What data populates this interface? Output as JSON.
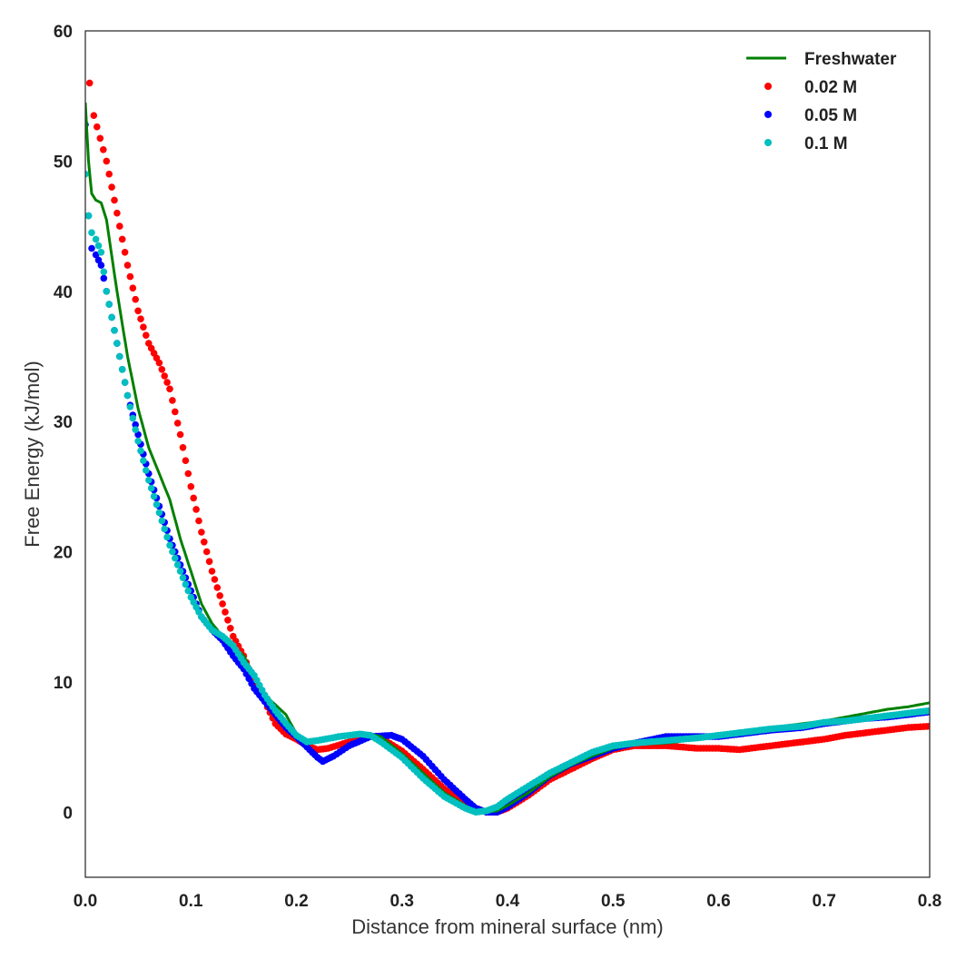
{
  "chart_data": {
    "type": "line",
    "title": "",
    "xlabel": "Distance from mineral surface (nm)",
    "ylabel": "Free Energy (kJ/mol)",
    "xlim": [
      0.0,
      0.8
    ],
    "ylim": [
      -5,
      60
    ],
    "xticks": [
      0.0,
      0.1,
      0.2,
      0.3,
      0.4,
      0.5,
      0.6,
      0.7,
      0.8
    ],
    "xtick_labels": [
      "0.0",
      "0.1",
      "0.2",
      "0.3",
      "0.4",
      "0.5",
      "0.6",
      "0.7",
      "0.8"
    ],
    "yticks": [
      0,
      10,
      20,
      30,
      40,
      50,
      60
    ],
    "ytick_labels": [
      "0",
      "10",
      "20",
      "30",
      "40",
      "50",
      "60"
    ],
    "grid": false,
    "legend_position": "top-right",
    "series": [
      {
        "name": "Freshwater",
        "style": "line",
        "color": "#008000",
        "points": [
          [
            0.0,
            54.5
          ],
          [
            0.003,
            50.0
          ],
          [
            0.006,
            47.5
          ],
          [
            0.01,
            47.0
          ],
          [
            0.015,
            46.8
          ],
          [
            0.02,
            45.5
          ],
          [
            0.03,
            40.0
          ],
          [
            0.04,
            35.0
          ],
          [
            0.05,
            31.0
          ],
          [
            0.06,
            28.0
          ],
          [
            0.07,
            26.0
          ],
          [
            0.08,
            24.0
          ],
          [
            0.09,
            21.0
          ],
          [
            0.1,
            18.5
          ],
          [
            0.11,
            16.0
          ],
          [
            0.12,
            14.5
          ],
          [
            0.13,
            13.5
          ],
          [
            0.15,
            12.0
          ],
          [
            0.17,
            9.0
          ],
          [
            0.19,
            7.5
          ],
          [
            0.2,
            6.0
          ],
          [
            0.21,
            5.3
          ],
          [
            0.22,
            5.5
          ],
          [
            0.25,
            5.9
          ],
          [
            0.27,
            6.0
          ],
          [
            0.28,
            5.8
          ],
          [
            0.3,
            4.5
          ],
          [
            0.32,
            3.0
          ],
          [
            0.34,
            1.5
          ],
          [
            0.36,
            0.5
          ],
          [
            0.37,
            0.1
          ],
          [
            0.38,
            0.0
          ],
          [
            0.39,
            0.1
          ],
          [
            0.4,
            0.5
          ],
          [
            0.42,
            1.5
          ],
          [
            0.44,
            2.7
          ],
          [
            0.46,
            3.6
          ],
          [
            0.48,
            4.3
          ],
          [
            0.5,
            4.9
          ],
          [
            0.52,
            5.2
          ],
          [
            0.55,
            5.3
          ],
          [
            0.58,
            5.6
          ],
          [
            0.6,
            6.0
          ],
          [
            0.62,
            6.2
          ],
          [
            0.65,
            6.5
          ],
          [
            0.68,
            6.8
          ],
          [
            0.7,
            7.0
          ],
          [
            0.72,
            7.3
          ],
          [
            0.74,
            7.6
          ],
          [
            0.76,
            7.9
          ],
          [
            0.78,
            8.1
          ],
          [
            0.8,
            8.4
          ]
        ]
      },
      {
        "name": "0.02 M",
        "style": "dots",
        "color": "#ff0000",
        "points": [
          [
            0.004,
            56.0
          ],
          [
            0.008,
            53.5
          ],
          [
            0.02,
            50.0
          ],
          [
            0.03,
            46.0
          ],
          [
            0.04,
            42.0
          ],
          [
            0.05,
            38.5
          ],
          [
            0.06,
            36.0
          ],
          [
            0.07,
            34.5
          ],
          [
            0.08,
            32.5
          ],
          [
            0.09,
            29.0
          ],
          [
            0.1,
            25.0
          ],
          [
            0.11,
            21.5
          ],
          [
            0.12,
            18.5
          ],
          [
            0.13,
            16.0
          ],
          [
            0.14,
            13.5
          ],
          [
            0.15,
            12.0
          ],
          [
            0.16,
            10.0
          ],
          [
            0.17,
            8.5
          ],
          [
            0.18,
            6.8
          ],
          [
            0.19,
            6.0
          ],
          [
            0.2,
            5.6
          ],
          [
            0.21,
            5.1
          ],
          [
            0.22,
            4.8
          ],
          [
            0.23,
            4.9
          ],
          [
            0.25,
            5.4
          ],
          [
            0.27,
            5.8
          ],
          [
            0.28,
            5.7
          ],
          [
            0.3,
            4.7
          ],
          [
            0.32,
            3.3
          ],
          [
            0.34,
            1.8
          ],
          [
            0.36,
            0.6
          ],
          [
            0.38,
            0.0
          ],
          [
            0.39,
            0.0
          ],
          [
            0.4,
            0.3
          ],
          [
            0.42,
            1.3
          ],
          [
            0.44,
            2.5
          ],
          [
            0.46,
            3.3
          ],
          [
            0.48,
            4.1
          ],
          [
            0.5,
            4.8
          ],
          [
            0.52,
            5.1
          ],
          [
            0.55,
            5.1
          ],
          [
            0.58,
            4.9
          ],
          [
            0.6,
            4.9
          ],
          [
            0.62,
            4.8
          ],
          [
            0.64,
            5.0
          ],
          [
            0.66,
            5.2
          ],
          [
            0.68,
            5.4
          ],
          [
            0.7,
            5.6
          ],
          [
            0.72,
            5.9
          ],
          [
            0.74,
            6.1
          ],
          [
            0.76,
            6.3
          ],
          [
            0.78,
            6.5
          ],
          [
            0.8,
            6.6
          ]
        ]
      },
      {
        "name": "0.05 M",
        "style": "dots",
        "color": "#0000ff",
        "points": [
          [
            0.0,
            52.8
          ],
          [
            0.003,
            45.8
          ],
          [
            0.006,
            43.3
          ],
          [
            0.01,
            42.8
          ],
          [
            0.015,
            42.0
          ],
          [
            0.02,
            40.0
          ],
          [
            0.03,
            36.0
          ],
          [
            0.04,
            32.0
          ],
          [
            0.05,
            29.0
          ],
          [
            0.06,
            26.0
          ],
          [
            0.07,
            23.5
          ],
          [
            0.08,
            21.0
          ],
          [
            0.09,
            19.0
          ],
          [
            0.1,
            17.0
          ],
          [
            0.11,
            15.0
          ],
          [
            0.12,
            14.0
          ],
          [
            0.13,
            13.2
          ],
          [
            0.14,
            12.0
          ],
          [
            0.15,
            11.0
          ],
          [
            0.16,
            9.5
          ],
          [
            0.17,
            8.5
          ],
          [
            0.18,
            7.5
          ],
          [
            0.19,
            6.5
          ],
          [
            0.2,
            5.8
          ],
          [
            0.21,
            5.0
          ],
          [
            0.22,
            4.2
          ],
          [
            0.225,
            3.9
          ],
          [
            0.235,
            4.3
          ],
          [
            0.25,
            5.1
          ],
          [
            0.27,
            5.8
          ],
          [
            0.29,
            5.9
          ],
          [
            0.3,
            5.6
          ],
          [
            0.32,
            4.3
          ],
          [
            0.34,
            2.5
          ],
          [
            0.36,
            1.0
          ],
          [
            0.37,
            0.3
          ],
          [
            0.38,
            0.0
          ],
          [
            0.39,
            0.0
          ],
          [
            0.4,
            0.4
          ],
          [
            0.42,
            1.5
          ],
          [
            0.44,
            2.8
          ],
          [
            0.46,
            3.7
          ],
          [
            0.48,
            4.3
          ],
          [
            0.5,
            4.9
          ],
          [
            0.52,
            5.3
          ],
          [
            0.55,
            5.8
          ],
          [
            0.58,
            5.8
          ],
          [
            0.6,
            5.8
          ],
          [
            0.62,
            6.0
          ],
          [
            0.65,
            6.3
          ],
          [
            0.68,
            6.5
          ],
          [
            0.7,
            6.8
          ],
          [
            0.72,
            7.0
          ],
          [
            0.74,
            7.2
          ],
          [
            0.76,
            7.3
          ],
          [
            0.78,
            7.5
          ],
          [
            0.8,
            7.7
          ]
        ]
      },
      {
        "name": "0.1 M",
        "style": "dots",
        "color": "#00bfbf",
        "points": [
          [
            0.0,
            49.0
          ],
          [
            0.003,
            45.8
          ],
          [
            0.006,
            44.5
          ],
          [
            0.01,
            44.0
          ],
          [
            0.015,
            43.0
          ],
          [
            0.02,
            40.0
          ],
          [
            0.03,
            36.0
          ],
          [
            0.04,
            32.0
          ],
          [
            0.05,
            28.5
          ],
          [
            0.06,
            25.5
          ],
          [
            0.07,
            23.0
          ],
          [
            0.08,
            20.5
          ],
          [
            0.09,
            18.5
          ],
          [
            0.1,
            16.5
          ],
          [
            0.11,
            15.0
          ],
          [
            0.12,
            14.0
          ],
          [
            0.13,
            13.5
          ],
          [
            0.14,
            12.8
          ],
          [
            0.15,
            11.5
          ],
          [
            0.16,
            10.5
          ],
          [
            0.17,
            9.0
          ],
          [
            0.18,
            7.8
          ],
          [
            0.19,
            6.8
          ],
          [
            0.2,
            5.9
          ],
          [
            0.21,
            5.4
          ],
          [
            0.22,
            5.5
          ],
          [
            0.24,
            5.8
          ],
          [
            0.26,
            6.0
          ],
          [
            0.27,
            5.9
          ],
          [
            0.28,
            5.4
          ],
          [
            0.3,
            4.2
          ],
          [
            0.32,
            2.6
          ],
          [
            0.34,
            1.2
          ],
          [
            0.36,
            0.3
          ],
          [
            0.37,
            0.0
          ],
          [
            0.38,
            0.1
          ],
          [
            0.39,
            0.4
          ],
          [
            0.4,
            1.0
          ],
          [
            0.42,
            2.0
          ],
          [
            0.44,
            3.0
          ],
          [
            0.46,
            3.8
          ],
          [
            0.48,
            4.6
          ],
          [
            0.5,
            5.1
          ],
          [
            0.52,
            5.3
          ],
          [
            0.55,
            5.5
          ],
          [
            0.58,
            5.7
          ],
          [
            0.6,
            5.9
          ],
          [
            0.62,
            6.1
          ],
          [
            0.65,
            6.4
          ],
          [
            0.68,
            6.6
          ],
          [
            0.7,
            6.9
          ],
          [
            0.72,
            7.0
          ],
          [
            0.74,
            7.2
          ],
          [
            0.76,
            7.4
          ],
          [
            0.78,
            7.6
          ],
          [
            0.8,
            7.8
          ]
        ]
      }
    ]
  }
}
